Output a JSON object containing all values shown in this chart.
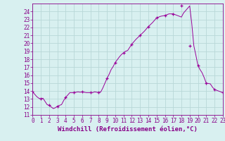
{
  "x_values": [
    0,
    0.25,
    0.5,
    0.75,
    1,
    1.25,
    1.5,
    1.75,
    2,
    2.25,
    2.5,
    2.75,
    3,
    3.25,
    3.5,
    3.75,
    4,
    4.25,
    4.5,
    4.75,
    5,
    5.25,
    5.5,
    5.75,
    6,
    6.25,
    6.5,
    6.75,
    7,
    7.25,
    7.5,
    7.75,
    8,
    8.25,
    8.5,
    8.75,
    9,
    9.25,
    9.5,
    9.75,
    10,
    10.25,
    10.5,
    10.75,
    11,
    11.25,
    11.5,
    11.75,
    12,
    12.25,
    12.5,
    12.75,
    13,
    13.25,
    13.5,
    13.75,
    14,
    14.25,
    14.5,
    14.75,
    15,
    15.25,
    15.5,
    15.75,
    16,
    16.25,
    16.5,
    16.75,
    17,
    17.25,
    17.5,
    17.75,
    18,
    18.25,
    18.5,
    18.75,
    19,
    19.25,
    19.5,
    19.75,
    20,
    20.25,
    20.5,
    20.75,
    21,
    21.25,
    21.5,
    21.75,
    22,
    22.25,
    22.5,
    22.75,
    23
  ],
  "y_values": [
    13.9,
    13.6,
    13.3,
    13.1,
    13.0,
    13.1,
    12.7,
    12.3,
    12.2,
    12.0,
    11.8,
    11.9,
    12.1,
    12.2,
    12.3,
    12.8,
    13.2,
    13.5,
    13.8,
    13.8,
    13.8,
    13.85,
    13.9,
    13.85,
    13.9,
    13.85,
    13.8,
    13.8,
    13.8,
    13.8,
    13.9,
    13.85,
    13.8,
    13.9,
    14.4,
    15.0,
    15.6,
    16.1,
    16.7,
    17.1,
    17.6,
    17.95,
    18.3,
    18.6,
    18.8,
    19.0,
    19.1,
    19.5,
    19.9,
    20.2,
    20.5,
    20.75,
    21.0,
    21.25,
    21.5,
    21.8,
    22.1,
    22.35,
    22.6,
    22.9,
    23.2,
    23.3,
    23.4,
    23.45,
    23.5,
    23.6,
    23.7,
    23.7,
    23.7,
    23.6,
    23.5,
    23.4,
    23.3,
    23.8,
    24.1,
    24.4,
    24.7,
    22.5,
    19.7,
    18.5,
    17.2,
    16.7,
    16.3,
    15.7,
    15.0,
    14.95,
    14.9,
    14.5,
    14.2,
    14.1,
    14.0,
    13.9,
    13.8
  ],
  "marker_x": [
    0,
    1,
    2,
    3,
    4,
    5,
    6,
    7,
    8,
    9,
    10,
    11,
    12,
    13,
    14,
    15,
    16,
    17,
    18,
    19,
    20,
    21,
    22,
    23
  ],
  "marker_y": [
    13.9,
    13.0,
    12.2,
    12.1,
    13.2,
    13.8,
    13.9,
    13.8,
    13.8,
    15.6,
    17.6,
    18.8,
    19.9,
    21.0,
    22.1,
    23.2,
    23.5,
    23.7,
    24.7,
    19.7,
    17.2,
    15.0,
    14.2,
    13.8
  ],
  "line_color": "#990099",
  "marker_color": "#990099",
  "bg_color": "#d8f0f0",
  "grid_color": "#b8d8d8",
  "xlabel": "Windchill (Refroidissement éolien,°C)",
  "xlim": [
    0,
    23
  ],
  "ylim": [
    11,
    25
  ],
  "yticks": [
    11,
    12,
    13,
    14,
    15,
    16,
    17,
    18,
    19,
    20,
    21,
    22,
    23,
    24
  ],
  "xticks": [
    0,
    1,
    2,
    3,
    4,
    5,
    6,
    7,
    8,
    9,
    10,
    11,
    12,
    13,
    14,
    15,
    16,
    17,
    18,
    19,
    20,
    21,
    22,
    23
  ],
  "label_fontsize": 6.5,
  "tick_fontsize": 5.5,
  "axis_color": "#880088"
}
